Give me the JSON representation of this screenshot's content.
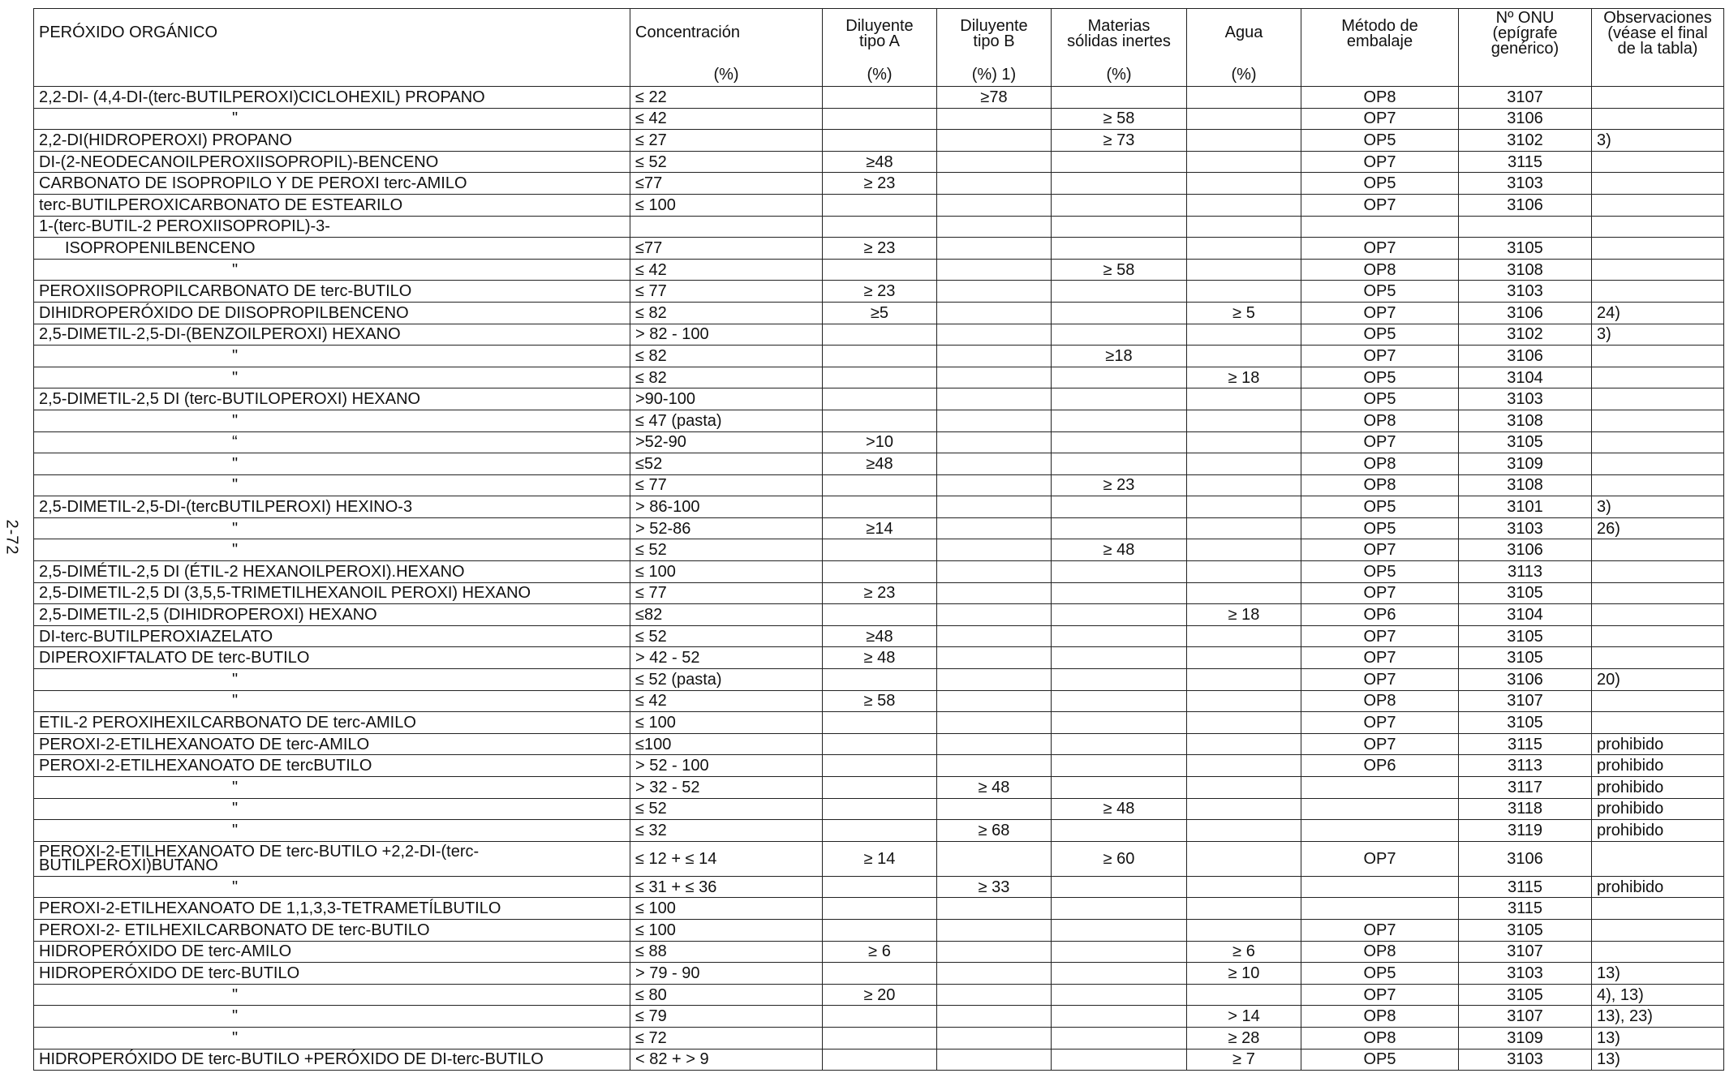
{
  "page_number": "2-72",
  "headers": {
    "peroxide": "PERÓXIDO ORGÁNICO",
    "concentration": "Concentración",
    "concentration_unit": "(%)",
    "diluent_a_1": "Diluyente",
    "diluent_a_2": "tipo A",
    "diluent_a_unit": "(%)",
    "diluent_b_1": "Diluyente",
    "diluent_b_2": "tipo B",
    "diluent_b_unit": "(%) 1)",
    "solids_1": "Materias",
    "solids_2": "sólidas inertes",
    "solids_unit": "(%)",
    "water": "Agua",
    "water_unit": "(%)",
    "method_1": "Método de",
    "method_2": "embalaje",
    "un_1": "Nº ONU",
    "un_2": "(epígrafe",
    "un_3": "genérico)",
    "obs_1": "Observaciones",
    "obs_2": "(véase el final",
    "obs_3": "de la tabla)"
  },
  "rows": [
    {
      "name": "2,2-DI- (4,4-DI-(terc-BUTILPEROXI)CICLOHEXIL) PROPANO",
      "conc": "≤ 22",
      "dil_a": "",
      "dil_b": "≥78",
      "solids": "",
      "water": "",
      "method": "OP8",
      "un": "3107",
      "obs": ""
    },
    {
      "name": "\"",
      "conc": "≤ 42",
      "dil_a": "",
      "dil_b": "",
      "solids": "≥ 58",
      "water": "",
      "method": "OP7",
      "un": "3106",
      "obs": ""
    },
    {
      "name": "2,2-DI(HIDROPEROXI) PROPANO",
      "conc": "≤ 27",
      "dil_a": "",
      "dil_b": "",
      "solids": "≥ 73",
      "water": "",
      "method": "OP5",
      "un": "3102",
      "obs": "3)"
    },
    {
      "name": "DI-(2-NEODECANOILPEROXIISOPROPIL)-BENCENO",
      "conc": "≤ 52",
      "dil_a": "≥48",
      "dil_b": "",
      "solids": "",
      "water": "",
      "method": "OP7",
      "un": "3115",
      "obs": ""
    },
    {
      "name": "CARBONATO DE ISOPROPILO Y DE PEROXI terc-AMILO",
      "conc": "≤77",
      "dil_a": "≥ 23",
      "dil_b": "",
      "solids": "",
      "water": "",
      "method": "OP5",
      "un": "3103",
      "obs": ""
    },
    {
      "name": "terc-BUTILPEROXICARBONATO DE ESTEARILO",
      "conc": "≤ 100",
      "dil_a": "",
      "dil_b": "",
      "solids": "",
      "water": "",
      "method": "OP7",
      "un": "3106",
      "obs": ""
    },
    {
      "name": "1-(terc-BUTIL-2 PEROXIISOPROPIL)-3-",
      "conc": "",
      "dil_a": "",
      "dil_b": "",
      "solids": "",
      "water": "",
      "method": "",
      "un": "",
      "obs": ""
    },
    {
      "name": "ISOPROPENILBENCENO",
      "indent": true,
      "conc": "≤77",
      "dil_a": "≥ 23",
      "dil_b": "",
      "solids": "",
      "water": "",
      "method": "OP7",
      "un": "3105",
      "obs": ""
    },
    {
      "name": "\"",
      "conc": "≤ 42",
      "dil_a": "",
      "dil_b": "",
      "solids": "≥ 58",
      "water": "",
      "method": "OP8",
      "un": "3108",
      "obs": ""
    },
    {
      "name": "PEROXIISOPROPILCARBONATO DE terc-BUTILO",
      "conc": "≤ 77",
      "dil_a": "≥ 23",
      "dil_b": "",
      "solids": "",
      "water": "",
      "method": "OP5",
      "un": "3103",
      "obs": ""
    },
    {
      "name": "DIHIDROPERÓXIDO DE DIISOPROPILBENCENO",
      "conc": "≤ 82",
      "dil_a": "≥5",
      "dil_b": "",
      "solids": "",
      "water": "≥ 5",
      "method": "OP7",
      "un": "3106",
      "obs": " 24)"
    },
    {
      "name": "2,5-DIMETIL-2,5-DI-(BENZOILPEROXI) HEXANO",
      "conc": "> 82 - 100",
      "dil_a": "",
      "dil_b": "",
      "solids": "",
      "water": "",
      "method": "OP5",
      "un": "3102",
      "obs": " 3)"
    },
    {
      "name": "\"",
      "conc": "≤ 82",
      "dil_a": "",
      "dil_b": "",
      "solids": "≥18",
      "water": "",
      "method": "OP7",
      "un": "3106",
      "obs": ""
    },
    {
      "name": "\"",
      "conc": "≤ 82",
      "dil_a": "",
      "dil_b": "",
      "solids": "",
      "water": "≥ 18",
      "method": "OP5",
      "un": "3104",
      "obs": ""
    },
    {
      "name": "2,5-DIMETIL-2,5 DI (terc-BUTILOPEROXI) HEXANO",
      "conc": ">90-100",
      "dil_a": "",
      "dil_b": "",
      "solids": "",
      "water": "",
      "method": "OP5",
      "un": "3103",
      "obs": ""
    },
    {
      "name": "\"",
      "conc": "≤ 47 (pasta)",
      "dil_a": "",
      "dil_b": "",
      "solids": "",
      "water": "",
      "method": "OP8",
      "un": "3108",
      "obs": ""
    },
    {
      "name": "“",
      "conc": ">52-90",
      "dil_a": ">10",
      "dil_b": "",
      "solids": "",
      "water": "",
      "method": "OP7",
      "un": "3105",
      "obs": ""
    },
    {
      "name": "\"",
      "conc": "≤52",
      "dil_a": "≥48",
      "dil_b": "",
      "solids": "",
      "water": "",
      "method": "OP8",
      "un": "3109",
      "obs": ""
    },
    {
      "name": "\"",
      "conc": "≤ 77",
      "dil_a": "",
      "dil_b": "",
      "solids": "≥ 23",
      "water": "",
      "method": "OP8",
      "un": "3108",
      "obs": ""
    },
    {
      "name": "2,5-DIMETIL-2,5-DI-(tercBUTILPEROXI) HEXINO-3",
      "conc": "> 86-100",
      "dil_a": "",
      "dil_b": "",
      "solids": "",
      "water": "",
      "method": "OP5",
      "un": "3101",
      "obs": "3)"
    },
    {
      "name": "\"",
      "conc": "> 52-86",
      "dil_a": "≥14",
      "dil_b": "",
      "solids": "",
      "water": "",
      "method": "OP5",
      "un": "3103",
      "obs": "26)"
    },
    {
      "name": "\"",
      "conc": "≤ 52",
      "dil_a": "",
      "dil_b": "",
      "solids": "≥ 48",
      "water": "",
      "method": "OP7",
      "un": "3106",
      "obs": ""
    },
    {
      "name": "2,5-DIMÉTIL-2,5 DI (ÉTIL-2 HEXANOILPEROXI).HEXANO",
      "conc": "≤ 100",
      "dil_a": "",
      "dil_b": "",
      "solids": "",
      "water": "",
      "method": "OP5",
      "un": "3113",
      "obs": ""
    },
    {
      "name": "2,5-DIMETIL-2,5 DI (3,5,5-TRIMETILHEXANOIL PEROXI) HEXANO",
      "conc": "≤ 77",
      "dil_a": "≥ 23",
      "dil_b": "",
      "solids": "",
      "water": "",
      "method": "OP7",
      "un": "3105",
      "obs": ""
    },
    {
      "name": "2,5-DIMETIL-2,5 (DIHIDROPEROXI) HEXANO",
      "conc": "≤82",
      "dil_a": "",
      "dil_b": "",
      "solids": "",
      "water": "≥ 18",
      "method": "OP6",
      "un": "3104",
      "obs": ""
    },
    {
      "name": "DI-terc-BUTILPEROXIAZELATO",
      "conc": "≤ 52",
      "dil_a": "≥48",
      "dil_b": "",
      "solids": "",
      "water": "",
      "method": "OP7",
      "un": "3105",
      "obs": ""
    },
    {
      "name": "DIPEROXIFTALATO DE terc-BUTILO",
      "conc": "> 42 - 52",
      "dil_a": "≥ 48",
      "dil_b": "",
      "solids": "",
      "water": "",
      "method": "OP7",
      "un": "3105",
      "obs": ""
    },
    {
      "name": "\"",
      "conc": "≤ 52 (pasta)",
      "dil_a": "",
      "dil_b": "",
      "solids": "",
      "water": "",
      "method": "OP7",
      "un": "3106",
      "obs": "20)"
    },
    {
      "name": "\"",
      "conc": "≤ 42",
      "dil_a": "≥ 58",
      "dil_b": "",
      "solids": "",
      "water": "",
      "method": "OP8",
      "un": "3107",
      "obs": ""
    },
    {
      "name": "ETIL-2 PEROXIHEXILCARBONATO DE terc-AMILO",
      "conc": "≤ 100",
      "dil_a": "",
      "dil_b": "",
      "solids": "",
      "water": "",
      "method": "OP7",
      "un": "3105",
      "obs": ""
    },
    {
      "name": "PEROXI-2-ETILHEXANOATO DE terc-AMILO",
      "conc": "≤100",
      "dil_a": "",
      "dil_b": "",
      "solids": "",
      "water": "",
      "method": "OP7",
      "un": "3115",
      "obs": "prohibido"
    },
    {
      "name": "PEROXI-2-ETILHEXANOATO DE tercBUTILO",
      "conc": "> 52 - 100",
      "dil_a": "",
      "dil_b": "",
      "solids": "",
      "water": "",
      "method": "OP6",
      "un": "3113",
      "obs": "prohibido"
    },
    {
      "name": "\"",
      "conc": "> 32 - 52",
      "dil_a": "",
      "dil_b": "≥ 48",
      "solids": "",
      "water": "",
      "method": "",
      "un": "3117",
      "obs": "prohibido"
    },
    {
      "name": "\"",
      "conc": "≤ 52",
      "dil_a": "",
      "dil_b": "",
      "solids": "≥ 48",
      "water": "",
      "method": "",
      "un": "3118",
      "obs": "prohibido"
    },
    {
      "name": "\"",
      "conc": "≤ 32",
      "dil_a": "",
      "dil_b": "≥ 68",
      "solids": "",
      "water": "",
      "method": "",
      "un": "3119",
      "obs": "prohibido"
    },
    {
      "name": "PEROXI-2-ETILHEXANOATO DE terc-BUTILO +2,2-DI-(terc-",
      "name2": "BUTILPEROXI)BUTANO",
      "tall": true,
      "conc": "≤ 12 + ≤ 14",
      "dil_a": "≥ 14",
      "dil_b": "",
      "solids": "≥ 60",
      "water": "",
      "method": "OP7",
      "un": "3106",
      "obs": ""
    },
    {
      "name": "\"",
      "conc": "≤ 31 + ≤ 36",
      "dil_a": "",
      "dil_b": "≥ 33",
      "solids": "",
      "water": "",
      "method": "",
      "un": "3115",
      "obs": "prohibido"
    },
    {
      "name": "PEROXI-2-ETILHEXANOATO DE 1,1,3,3-TETRAMETÍLBUTILO",
      "conc": "≤ 100",
      "dil_a": "",
      "dil_b": "",
      "solids": "",
      "water": "",
      "method": "",
      "un": "3115",
      "obs": ""
    },
    {
      "name": "PEROXI-2- ETILHEXILCARBONATO DE terc-BUTILO",
      "conc": "≤ 100",
      "dil_a": "",
      "dil_b": "",
      "solids": "",
      "water": "",
      "method": "OP7",
      "un": "3105",
      "obs": ""
    },
    {
      "name": "HIDROPERÓXIDO DE terc-AMILO",
      "conc": "≤ 88",
      "dil_a": "≥ 6",
      "dil_b": "",
      "solids": "",
      "water": "≥ 6",
      "method": "OP8",
      "un": "3107",
      "obs": ""
    },
    {
      "name": "HIDROPERÓXIDO DE terc-BUTILO",
      "conc": "> 79 - 90",
      "dil_a": "",
      "dil_b": "",
      "solids": "",
      "water": "≥ 10",
      "method": "OP5",
      "un": "3103",
      "obs": "13)"
    },
    {
      "name": "\"",
      "conc": "≤ 80",
      "dil_a": "≥ 20",
      "dil_b": "",
      "solids": "",
      "water": "",
      "method": "OP7",
      "un": "3105",
      "obs": "4), 13)"
    },
    {
      "name": "\"",
      "conc": "≤ 79",
      "dil_a": "",
      "dil_b": "",
      "solids": "",
      "water": ">  14",
      "method": "OP8",
      "un": "3107",
      "obs": "13), 23)"
    },
    {
      "name": "\"",
      "conc": "≤ 72",
      "dil_a": "",
      "dil_b": "",
      "solids": "",
      "water": "≥ 28",
      "method": "OP8",
      "un": "3109",
      "obs": "13)"
    },
    {
      "name": "HIDROPERÓXIDO DE terc-BUTILO +PERÓXIDO DE DI-terc-BUTILO",
      "conc": "< 82 + > 9",
      "dil_a": "",
      "dil_b": "",
      "solids": "",
      "water": "≥ 7",
      "method": "OP5",
      "un": "3103",
      "obs": "13)"
    }
  ]
}
